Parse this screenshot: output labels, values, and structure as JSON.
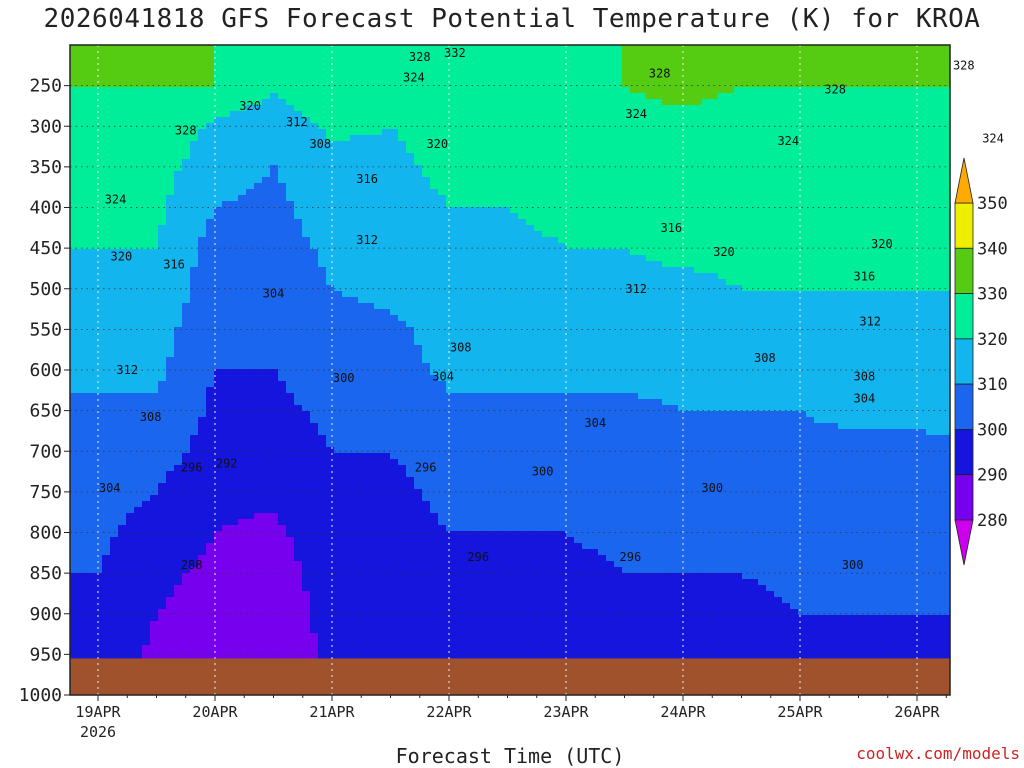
{
  "header": {
    "title": "2026041818 GFS Forecast Potential Temperature (K) for KROA"
  },
  "footer": {
    "xlabel": "Forecast Time (UTC)",
    "credit": "coolwx.com/models"
  },
  "chart_data": {
    "type": "heatmap",
    "title": "2026041818 GFS Forecast Potential Temperature (K) for KROA",
    "xlabel": "Forecast Time (UTC)",
    "ylabel": "",
    "x_ticks": [
      {
        "label": "19APR",
        "sub": "2026",
        "day": 0
      },
      {
        "label": "20APR",
        "sub": "",
        "day": 1
      },
      {
        "label": "21APR",
        "sub": "",
        "day": 2
      },
      {
        "label": "22APR",
        "sub": "",
        "day": 3
      },
      {
        "label": "23APR",
        "sub": "",
        "day": 4
      },
      {
        "label": "24APR",
        "sub": "",
        "day": 5
      },
      {
        "label": "25APR",
        "sub": "",
        "day": 6
      },
      {
        "label": "26APR",
        "sub": "",
        "day": 7
      }
    ],
    "y_ticks": [
      250,
      300,
      350,
      400,
      450,
      500,
      550,
      600,
      650,
      700,
      750,
      800,
      850,
      900,
      950,
      1000
    ],
    "y_range_hpa": [
      200,
      1000
    ],
    "surface_pressure_hpa": 955,
    "grid": true,
    "colorbar": {
      "levels": [
        280,
        290,
        300,
        310,
        320,
        330,
        340,
        350
      ],
      "colors": [
        "#cc00ee",
        "#7700ee",
        "#1515dd",
        "#1a66ee",
        "#13b5ee",
        "#00ee99",
        "#55cc11",
        "#eeee00",
        "#ffaa00"
      ],
      "position": "right"
    },
    "column_profiles": {
      "times_hours": [
        0,
        12,
        24,
        36,
        48,
        60,
        72,
        84,
        96,
        108,
        120,
        132,
        144,
        156,
        168,
        180
      ],
      "levels_hpa": [
        250,
        300,
        350,
        400,
        450,
        500,
        550,
        600,
        650,
        700,
        750,
        800,
        850,
        900,
        950
      ],
      "potential_temperature_K": [
        [
          330,
          326,
          324,
          322,
          320,
          316,
          314,
          312,
          308,
          306,
          304,
          302,
          300,
          298,
          296
        ],
        [
          330,
          328,
          324,
          322,
          320,
          318,
          314,
          312,
          308,
          304,
          300,
          296,
          292,
          290,
          288
        ],
        [
          330,
          318,
          314,
          310,
          306,
          304,
          302,
          300,
          298,
          296,
          292,
          290,
          288,
          286,
          285
        ],
        [
          322,
          314,
          310,
          308,
          306,
          304,
          302,
          300,
          298,
          294,
          292,
          288,
          286,
          285,
          284
        ],
        [
          326,
          322,
          316,
          314,
          312,
          310,
          308,
          304,
          302,
          300,
          298,
          296,
          294,
          293,
          292
        ],
        [
          324,
          320,
          318,
          316,
          314,
          312,
          308,
          306,
          304,
          300,
          298,
          296,
          295,
          294,
          293
        ],
        [
          328,
          324,
          322,
          320,
          318,
          316,
          314,
          312,
          308,
          304,
          302,
          300,
          298,
          296,
          294
        ],
        [
          328,
          324,
          322,
          320,
          318,
          316,
          314,
          312,
          308,
          304,
          302,
          300,
          298,
          296,
          295
        ],
        [
          328,
          326,
          324,
          322,
          320,
          318,
          314,
          312,
          308,
          304,
          302,
          300,
          298,
          297,
          296
        ],
        [
          330,
          328,
          326,
          324,
          320,
          318,
          316,
          312,
          308,
          306,
          304,
          302,
          300,
          298,
          297
        ],
        [
          332,
          328,
          326,
          324,
          322,
          318,
          316,
          314,
          310,
          306,
          304,
          302,
          300,
          298,
          297
        ],
        [
          330,
          328,
          326,
          324,
          322,
          320,
          316,
          314,
          310,
          306,
          304,
          302,
          300,
          298,
          297
        ],
        [
          330,
          328,
          326,
          324,
          322,
          320,
          318,
          314,
          310,
          308,
          306,
          304,
          302,
          300,
          298
        ],
        [
          330,
          328,
          326,
          324,
          322,
          320,
          318,
          316,
          312,
          308,
          306,
          304,
          302,
          300,
          299
        ],
        [
          330,
          328,
          326,
          324,
          322,
          320,
          318,
          316,
          312,
          308,
          306,
          304,
          302,
          300,
          299
        ],
        [
          330,
          328,
          326,
          324,
          322,
          320,
          318,
          316,
          312,
          310,
          306,
          304,
          302,
          300,
          299
        ]
      ]
    },
    "contour_labels": [
      {
        "text": "332",
        "day": 3.05,
        "p": 210
      },
      {
        "text": "328",
        "day": 2.75,
        "p": 215
      },
      {
        "text": "324",
        "day": 2.7,
        "p": 240
      },
      {
        "text": "328",
        "day": 4.8,
        "p": 235
      },
      {
        "text": "328",
        "day": 6.3,
        "p": 255
      },
      {
        "text": "328",
        "day": 7.4,
        "p": 225
      },
      {
        "text": "320",
        "day": 1.3,
        "p": 275
      },
      {
        "text": "324",
        "day": 4.6,
        "p": 285
      },
      {
        "text": "328",
        "day": 0.75,
        "p": 305
      },
      {
        "text": "312",
        "day": 1.7,
        "p": 295
      },
      {
        "text": "320",
        "day": 2.9,
        "p": 322
      },
      {
        "text": "324",
        "day": 5.9,
        "p": 318
      },
      {
        "text": "324",
        "day": 7.65,
        "p": 315
      },
      {
        "text": "308",
        "day": 1.9,
        "p": 322
      },
      {
        "text": "316",
        "day": 2.3,
        "p": 365
      },
      {
        "text": "324",
        "day": 0.15,
        "p": 390
      },
      {
        "text": "316",
        "day": 4.9,
        "p": 425
      },
      {
        "text": "312",
        "day": 2.3,
        "p": 440
      },
      {
        "text": "320",
        "day": 5.35,
        "p": 455
      },
      {
        "text": "320",
        "day": 6.7,
        "p": 445
      },
      {
        "text": "320",
        "day": 0.2,
        "p": 460
      },
      {
        "text": "316",
        "day": 0.65,
        "p": 470
      },
      {
        "text": "316",
        "day": 6.55,
        "p": 485
      },
      {
        "text": "312",
        "day": 4.6,
        "p": 500
      },
      {
        "text": "304",
        "day": 1.5,
        "p": 506
      },
      {
        "text": "312",
        "day": 6.6,
        "p": 540
      },
      {
        "text": "308",
        "day": 3.1,
        "p": 572
      },
      {
        "text": "308",
        "day": 5.7,
        "p": 585
      },
      {
        "text": "312",
        "day": 0.25,
        "p": 600
      },
      {
        "text": "300",
        "day": 2.1,
        "p": 610
      },
      {
        "text": "304",
        "day": 2.95,
        "p": 608
      },
      {
        "text": "308",
        "day": 6.55,
        "p": 608
      },
      {
        "text": "304",
        "day": 6.55,
        "p": 635
      },
      {
        "text": "308",
        "day": 0.45,
        "p": 658
      },
      {
        "text": "304",
        "day": 4.25,
        "p": 665
      },
      {
        "text": "296",
        "day": 0.8,
        "p": 720
      },
      {
        "text": "292",
        "day": 1.1,
        "p": 715
      },
      {
        "text": "296",
        "day": 2.8,
        "p": 720
      },
      {
        "text": "300",
        "day": 3.8,
        "p": 725
      },
      {
        "text": "304",
        "day": 0.1,
        "p": 745
      },
      {
        "text": "300",
        "day": 5.25,
        "p": 745
      },
      {
        "text": "296",
        "day": 3.25,
        "p": 830
      },
      {
        "text": "296",
        "day": 4.55,
        "p": 830
      },
      {
        "text": "288",
        "day": 0.8,
        "p": 840
      },
      {
        "text": "300",
        "day": 6.45,
        "p": 840
      }
    ]
  }
}
